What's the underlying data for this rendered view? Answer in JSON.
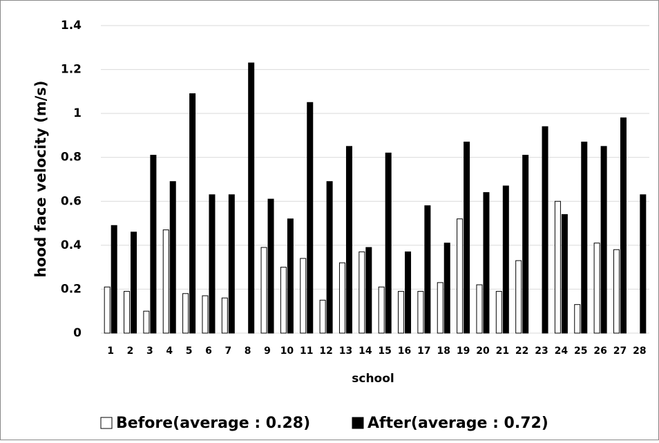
{
  "chart_data": {
    "type": "bar",
    "x_label": "school",
    "y_label": "hood face velocity (m/s)",
    "categories": [
      "1",
      "2",
      "3",
      "4",
      "5",
      "6",
      "7",
      "8",
      "9",
      "10",
      "11",
      "12",
      "13",
      "14",
      "15",
      "16",
      "17",
      "18",
      "19",
      "20",
      "21",
      "22",
      "23",
      "24",
      "25",
      "26",
      "27",
      "28"
    ],
    "series": [
      {
        "name": "Before(average : 0.28)",
        "color": "#ffffff",
        "values": [
          0.21,
          0.19,
          0.1,
          0.47,
          0.18,
          0.17,
          0.16,
          null,
          0.39,
          0.3,
          0.34,
          0.15,
          0.32,
          0.37,
          0.21,
          0.19,
          0.19,
          0.23,
          0.52,
          0.22,
          0.19,
          0.33,
          null,
          0.6,
          0.13,
          0.41,
          0.38,
          null
        ]
      },
      {
        "name": "After(average : 0.72)",
        "color": "#000000",
        "values": [
          0.49,
          0.46,
          0.81,
          0.69,
          1.09,
          0.63,
          0.63,
          1.23,
          0.61,
          0.52,
          1.05,
          0.69,
          0.85,
          0.39,
          0.82,
          0.37,
          0.58,
          0.41,
          0.87,
          0.64,
          0.67,
          0.81,
          0.94,
          0.54,
          0.87,
          0.85,
          0.98,
          0.63
        ]
      }
    ],
    "ylim": [
      0,
      1.4
    ],
    "yticks": [
      0,
      0.2,
      0.4,
      0.6,
      0.8,
      1,
      1.2,
      1.4
    ],
    "grid": true,
    "legend": "bottom"
  }
}
